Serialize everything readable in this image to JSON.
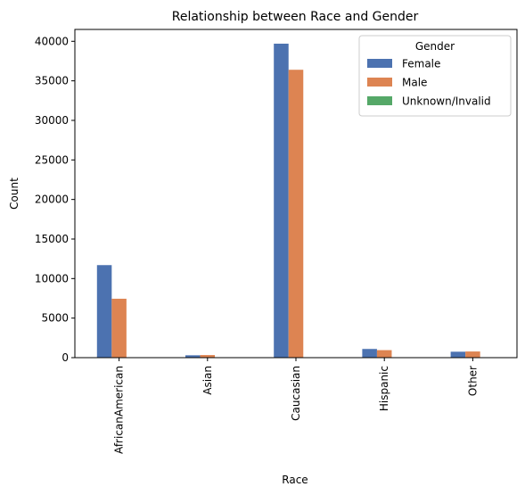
{
  "chart_data": {
    "type": "bar",
    "title": "Relationship between Race and Gender",
    "xlabel": "Race",
    "ylabel": "Count",
    "ylim": [
      0,
      41500
    ],
    "yticks": [
      0,
      5000,
      10000,
      15000,
      20000,
      25000,
      30000,
      35000,
      40000
    ],
    "categories": [
      "AfricanAmerican",
      "Asian",
      "Caucasian",
      "Hispanic",
      "Other"
    ],
    "series": [
      {
        "name": "Female",
        "color": "#4c72b0",
        "values": [
          11700,
          300,
          39700,
          1100,
          750
        ]
      },
      {
        "name": "Male",
        "color": "#dd8452",
        "values": [
          7450,
          330,
          36400,
          950,
          780
        ]
      },
      {
        "name": "Unknown/Invalid",
        "color": "#55a868",
        "values": [
          0,
          0,
          3,
          0,
          0
        ]
      }
    ],
    "legend": {
      "title": "Gender",
      "placement": "top-right"
    },
    "grid": false
  }
}
